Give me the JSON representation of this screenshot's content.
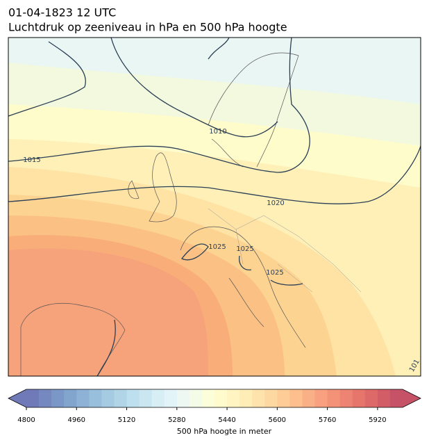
{
  "title": "01-04-1823 12 UTC",
  "subtitle": "Luchtdruk op zeeniveau in hPa en 500 hPa hoogte",
  "contour_labels": [
    1010,
    1015,
    1020,
    1025,
    1025,
    1025,
    "101"
  ],
  "colorbar": {
    "label": "500 hPa hoogte in meter",
    "range": [
      4800,
      6000
    ],
    "ticks": [
      4800,
      4960,
      5120,
      5280,
      5440,
      5600,
      5760,
      5920
    ]
  }
}
